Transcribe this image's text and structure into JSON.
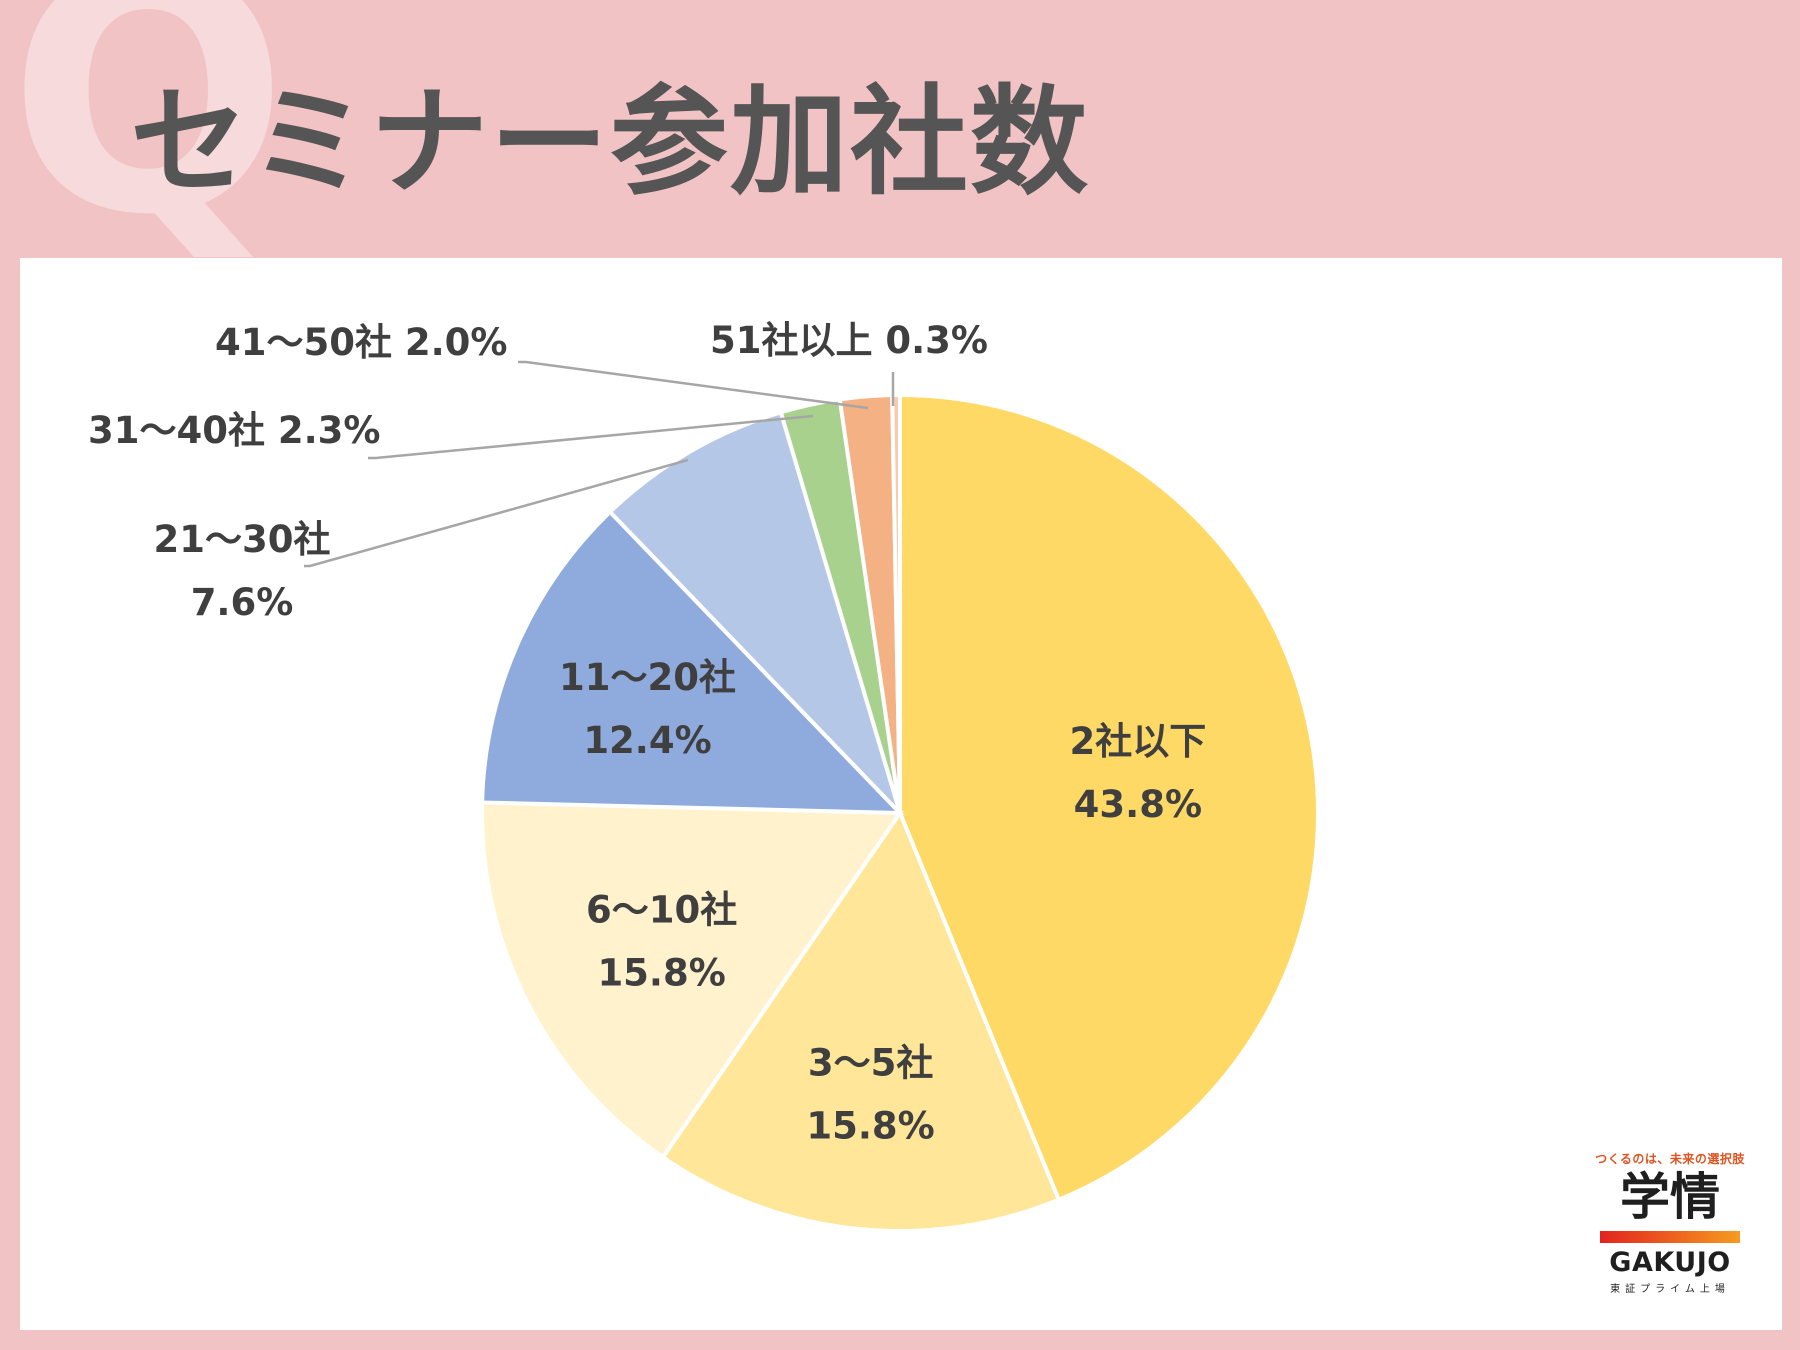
{
  "header": {
    "title": "セミナー参加社数",
    "q_mark": "Q"
  },
  "chart_data": {
    "type": "pie",
    "title": "セミナー参加社数",
    "start_angle_deg": 0,
    "direction": "clockwise",
    "slices": [
      {
        "label": "2社以下",
        "value": 43.8,
        "display": "43.8%",
        "color": "#ffd966",
        "label_position": "inside"
      },
      {
        "label": "3～5社",
        "value": 15.8,
        "display": "15.8%",
        "color": "#ffe699",
        "label_position": "inside"
      },
      {
        "label": "6～10社",
        "value": 15.8,
        "display": "15.8%",
        "color": "#fff2cc",
        "label_position": "inside"
      },
      {
        "label": "11～20社",
        "value": 12.4,
        "display": "12.4%",
        "color": "#8faadc",
        "label_position": "inside"
      },
      {
        "label": "21～30社",
        "value": 7.6,
        "display": "7.6%",
        "color": "#b4c7e7",
        "label_position": "outside"
      },
      {
        "label": "31～40社",
        "value": 2.3,
        "display": "2.3%",
        "color": "#a9d18e",
        "label_position": "outside"
      },
      {
        "label": "41～50社",
        "value": 2.0,
        "display": "2.0%",
        "color": "#f4b183",
        "label_position": "outside"
      },
      {
        "label": "51社以上",
        "value": 0.3,
        "display": "0.3%",
        "color": "#f8cbad",
        "label_position": "outside"
      }
    ]
  },
  "logo": {
    "tagline": "つくるのは、未来の選択肢",
    "mark": "学情",
    "text": "GAKUJO",
    "sub": "東証プライム上場"
  }
}
